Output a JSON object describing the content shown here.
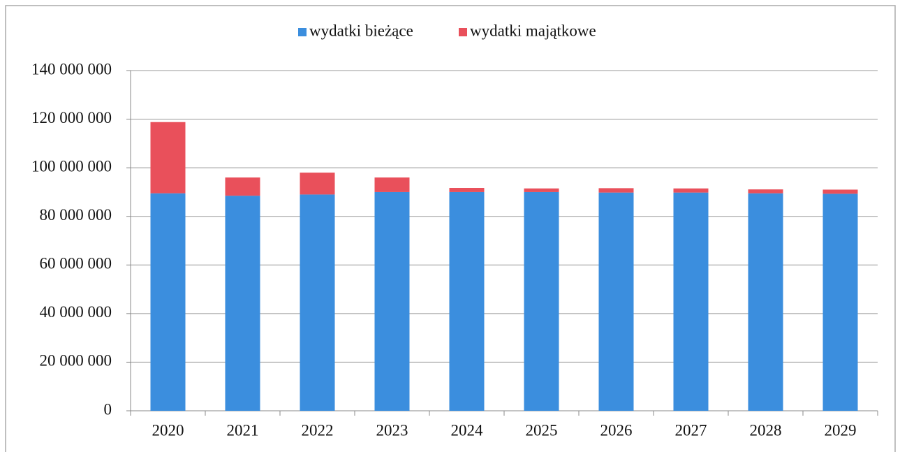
{
  "chart_data": {
    "type": "stacked-bar",
    "categories": [
      "2020",
      "2021",
      "2022",
      "2023",
      "2024",
      "2025",
      "2026",
      "2027",
      "2028",
      "2029"
    ],
    "series": [
      {
        "name": "wydatki bieżące",
        "color": "#3b8ede",
        "values": [
          89500000,
          88500000,
          89000000,
          90000000,
          90000000,
          90000000,
          89800000,
          89800000,
          89500000,
          89300000
        ]
      },
      {
        "name": "wydatki majątkowe",
        "color": "#e9505b",
        "values": [
          29300000,
          7500000,
          9000000,
          6000000,
          1700000,
          1500000,
          1800000,
          1700000,
          1600000,
          1700000
        ]
      }
    ],
    "ylim": [
      0,
      140000000
    ],
    "yticks": [
      {
        "value": 0,
        "label": "0"
      },
      {
        "value": 20000000,
        "label": "20 000 000"
      },
      {
        "value": 40000000,
        "label": "40 000 000"
      },
      {
        "value": 60000000,
        "label": "60 000 000"
      },
      {
        "value": 80000000,
        "label": "80 000 000"
      },
      {
        "value": 100000000,
        "label": "100 000 000"
      },
      {
        "value": 120000000,
        "label": "120 000 000"
      },
      {
        "value": 140000000,
        "label": "140 000 000"
      }
    ],
    "grid": true,
    "legend": "top"
  }
}
